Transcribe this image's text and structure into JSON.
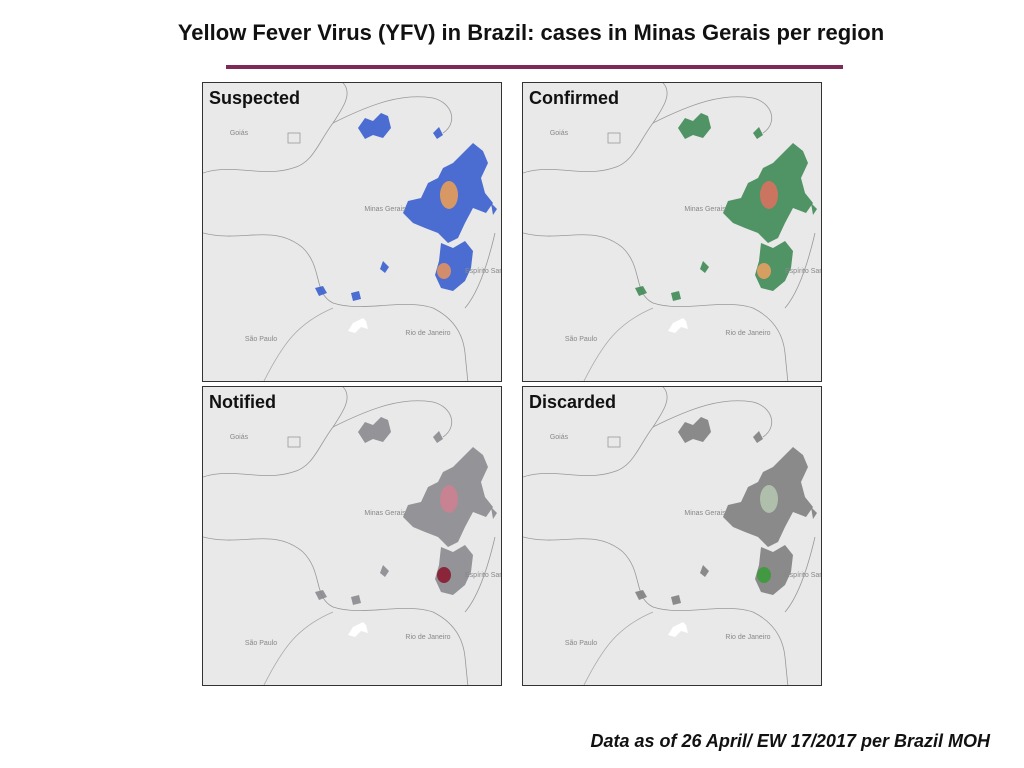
{
  "header": {
    "title": "Yellow Fever Virus (YFV) in Brazil: cases in Minas Gerais per region"
  },
  "panels": [
    {
      "label": "Suspected"
    },
    {
      "label": "Confirmed"
    },
    {
      "label": "Notified"
    },
    {
      "label": "Discarded"
    }
  ],
  "map_labels": [
    "Goiás",
    "Minas Gerais",
    "Espírito Santo",
    "São Paulo",
    "Rio de Janeiro"
  ],
  "footnote": "Data as of 26 April/ EW 17/2017 per Brazil MOH"
}
